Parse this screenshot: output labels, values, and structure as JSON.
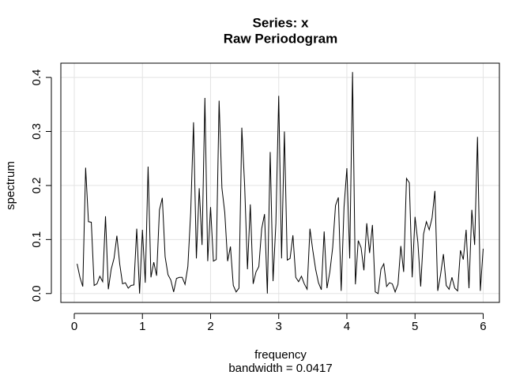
{
  "chart_data": {
    "type": "line",
    "title": "Series: x",
    "subtitle": "Raw Periodogram",
    "x_label": "frequency",
    "x_sublabel": "bandwidth = 0.0417",
    "y_label": "spectrum",
    "color": "#000000",
    "grid": true,
    "xlim": [
      -0.197,
      6.238
    ],
    "ylim": [
      -0.0164,
      0.4264
    ],
    "xticks": [
      0,
      1,
      2,
      3,
      4,
      5,
      6
    ],
    "yticks": [
      {
        "value": 0,
        "label": "0.0"
      },
      0.1,
      0.2,
      0.3,
      0.4
    ],
    "x": [
      0.0417,
      0.0833,
      0.125,
      0.1667,
      0.2083,
      0.25,
      0.2917,
      0.3333,
      0.375,
      0.4167,
      0.4583,
      0.5,
      0.5417,
      0.5833,
      0.625,
      0.6667,
      0.7083,
      0.75,
      0.7917,
      0.8333,
      0.875,
      0.9167,
      0.9583,
      1,
      1.0417,
      1.0833,
      1.125,
      1.1667,
      1.2083,
      1.25,
      1.2917,
      1.3333,
      1.375,
      1.4167,
      1.4583,
      1.5,
      1.5417,
      1.5833,
      1.625,
      1.6667,
      1.7083,
      1.75,
      1.7917,
      1.8333,
      1.875,
      1.9167,
      1.9583,
      2,
      2.0417,
      2.0833,
      2.125,
      2.1667,
      2.2083,
      2.25,
      2.2917,
      2.3333,
      2.375,
      2.4167,
      2.4583,
      2.5,
      2.5417,
      2.5833,
      2.625,
      2.6667,
      2.7083,
      2.75,
      2.7917,
      2.8333,
      2.875,
      2.9167,
      2.9583,
      3,
      3.0417,
      3.0833,
      3.125,
      3.1667,
      3.2083,
      3.25,
      3.2917,
      3.3333,
      3.375,
      3.4167,
      3.4583,
      3.5,
      3.5417,
      3.5833,
      3.625,
      3.6667,
      3.7083,
      3.75,
      3.7917,
      3.8333,
      3.875,
      3.9167,
      3.9583,
      4,
      4.0417,
      4.0833,
      4.125,
      4.1667,
      4.2083,
      4.25,
      4.2917,
      4.3333,
      4.375,
      4.4167,
      4.4583,
      4.5,
      4.5417,
      4.5833,
      4.625,
      4.6667,
      4.7083,
      4.75,
      4.7917,
      4.8333,
      4.875,
      4.9167,
      4.9583,
      5,
      5.0417,
      5.0833,
      5.125,
      5.1667,
      5.2083,
      5.25,
      5.2917,
      5.3333,
      5.375,
      5.4167,
      5.4583,
      5.5,
      5.5417,
      5.5833,
      5.625,
      5.6667,
      5.7083,
      5.75,
      5.7917,
      5.8333,
      5.875,
      5.9167,
      5.9583,
      6
    ],
    "values": [
      0.055,
      0.03,
      0.013,
      0.233,
      0.133,
      0.132,
      0.015,
      0.018,
      0.032,
      0.022,
      0.143,
      0.008,
      0.045,
      0.065,
      0.107,
      0.055,
      0.018,
      0.02,
      0.01,
      0.015,
      0.016,
      0.12,
      0.0,
      0.118,
      0.02,
      0.235,
      0.03,
      0.058,
      0.033,
      0.155,
      0.177,
      0.068,
      0.035,
      0.025,
      0.003,
      0.028,
      0.03,
      0.03,
      0.017,
      0.05,
      0.15,
      0.317,
      0.065,
      0.195,
      0.09,
      0.362,
      0.06,
      0.16,
      0.06,
      0.063,
      0.357,
      0.195,
      0.15,
      0.06,
      0.087,
      0.015,
      0.003,
      0.01,
      0.307,
      0.2,
      0.045,
      0.165,
      0.018,
      0.04,
      0.05,
      0.12,
      0.147,
      0.0,
      0.262,
      0.023,
      0.13,
      0.366,
      0.065,
      0.3,
      0.062,
      0.065,
      0.108,
      0.03,
      0.022,
      0.032,
      0.018,
      0.008,
      0.12,
      0.08,
      0.045,
      0.02,
      0.007,
      0.115,
      0.01,
      0.04,
      0.085,
      0.163,
      0.178,
      0.005,
      0.16,
      0.232,
      0.065,
      0.41,
      0.017,
      0.098,
      0.085,
      0.043,
      0.13,
      0.075,
      0.127,
      0.003,
      0.0,
      0.045,
      0.055,
      0.013,
      0.02,
      0.018,
      0.003,
      0.017,
      0.088,
      0.04,
      0.213,
      0.205,
      0.03,
      0.142,
      0.095,
      0.013,
      0.11,
      0.133,
      0.118,
      0.14,
      0.19,
      0.005,
      0.035,
      0.073,
      0.015,
      0.008,
      0.03,
      0.01,
      0.005,
      0.08,
      0.063,
      0.118,
      0.01,
      0.155,
      0.09,
      0.29,
      0.005,
      0.083
    ]
  }
}
